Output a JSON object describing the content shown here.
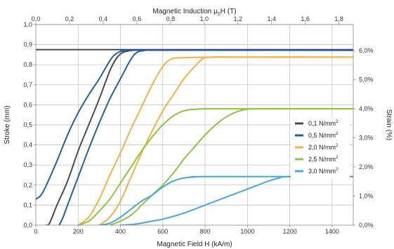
{
  "chart_data": {
    "type": "line",
    "x_axis": {
      "label": "Magnetic Field H (kA/m)",
      "range": [
        0,
        1500
      ],
      "ticks": [
        0,
        200,
        400,
        600,
        800,
        1000,
        1200,
        1400
      ],
      "tick_labels": [
        "0",
        "200",
        "400",
        "600",
        "800",
        "1000",
        "1200",
        "1400"
      ]
    },
    "top_axis": {
      "label_main": "Magnetic Induction  μ",
      "label_sub": "0",
      "label_tail": "H (T)",
      "range": [
        0,
        1.885
      ],
      "ticks": [
        0,
        0.2,
        0.4,
        0.6,
        0.8,
        1.0,
        1.2,
        1.4,
        1.6,
        1.8
      ],
      "tick_labels": [
        "0,0",
        "0,2",
        "0,4",
        "0,6",
        "0,8",
        "1,0",
        "1,2",
        "1,4",
        "1,6",
        "1,8"
      ]
    },
    "y_axis": {
      "label": "Stroke (mm)",
      "range": [
        0,
        1.0
      ],
      "ticks": [
        0,
        0.1,
        0.2,
        0.3,
        0.4,
        0.5,
        0.6,
        0.7,
        0.8,
        0.9,
        1.0
      ],
      "tick_labels": [
        "0,0",
        "0,1",
        "0,2",
        "0,3",
        "0,4",
        "0,5",
        "0,6",
        "0,7",
        "0,8",
        "0,9",
        "1,0"
      ]
    },
    "y2_axis": {
      "label": "Strain (%)",
      "range": [
        0,
        6.896
      ],
      "ticks": [
        0,
        1,
        2,
        3,
        4,
        5,
        6
      ],
      "tick_labels": [
        "0,0%",
        "1,0%",
        "2,0%",
        "3,0%",
        "4,0%",
        "5,0%",
        "6,0%"
      ]
    },
    "grid": true,
    "legend_position": "right-center",
    "series": [
      {
        "name": "0,1 N/mm",
        "sup": "2",
        "color": "#4a4a4a",
        "curves": [
          [
            [
              0,
              0.875
            ],
            [
              1500,
              0.875
            ]
          ],
          [
            [
              50,
              0
            ],
            [
              65,
              0.01
            ],
            [
              100,
              0.1
            ],
            [
              150,
              0.22
            ],
            [
              200,
              0.37
            ],
            [
              250,
              0.5
            ],
            [
              300,
              0.63
            ],
            [
              350,
              0.77
            ],
            [
              380,
              0.83
            ],
            [
              410,
              0.86
            ],
            [
              450,
              0.87
            ],
            [
              520,
              0.872
            ],
            [
              1500,
              0.872
            ]
          ]
        ]
      },
      {
        "name": "0,5 N/mm",
        "sup": "2",
        "color": "#1f5fa8",
        "curves": [
          [
            [
              0,
              0.13
            ],
            [
              25,
              0.15
            ],
            [
              50,
              0.2
            ],
            [
              100,
              0.32
            ],
            [
              150,
              0.45
            ],
            [
              200,
              0.56
            ],
            [
              250,
              0.65
            ],
            [
              300,
              0.73
            ],
            [
              350,
              0.82
            ],
            [
              380,
              0.855
            ],
            [
              420,
              0.87
            ],
            [
              500,
              0.873
            ],
            [
              1500,
              0.872
            ]
          ],
          [
            [
              110,
              0
            ],
            [
              125,
              0.03
            ],
            [
              150,
              0.1
            ],
            [
              200,
              0.24
            ],
            [
              250,
              0.38
            ],
            [
              300,
              0.51
            ],
            [
              350,
              0.63
            ],
            [
              400,
              0.73
            ],
            [
              440,
              0.81
            ],
            [
              470,
              0.855
            ],
            [
              510,
              0.87
            ],
            [
              600,
              0.873
            ],
            [
              1500,
              0.872
            ]
          ]
        ]
      },
      {
        "name": "2,0 N/mm",
        "sup": "2",
        "color": "#f5b041",
        "curves": [
          [
            [
              200,
              0
            ],
            [
              250,
              0.04
            ],
            [
              300,
              0.13
            ],
            [
              350,
              0.25
            ],
            [
              400,
              0.36
            ],
            [
              450,
              0.48
            ],
            [
              500,
              0.59
            ],
            [
              550,
              0.7
            ],
            [
              600,
              0.79
            ],
            [
              640,
              0.828
            ],
            [
              700,
              0.835
            ],
            [
              900,
              0.838
            ],
            [
              1500,
              0.838
            ]
          ],
          [
            [
              300,
              0
            ],
            [
              350,
              0.04
            ],
            [
              400,
              0.12
            ],
            [
              450,
              0.24
            ],
            [
              500,
              0.36
            ],
            [
              550,
              0.47
            ],
            [
              600,
              0.57
            ],
            [
              650,
              0.65
            ],
            [
              700,
              0.73
            ],
            [
              750,
              0.79
            ],
            [
              790,
              0.83
            ],
            [
              830,
              0.838
            ],
            [
              1000,
              0.838
            ],
            [
              1500,
              0.838
            ]
          ]
        ]
      },
      {
        "name": "2,5 N/mm",
        "sup": "2",
        "color": "#8cc63f",
        "curves": [
          [
            [
              200,
              0
            ],
            [
              250,
              0.02
            ],
            [
              300,
              0.07
            ],
            [
              350,
              0.13
            ],
            [
              400,
              0.21
            ],
            [
              450,
              0.29
            ],
            [
              500,
              0.37
            ],
            [
              550,
              0.44
            ],
            [
              600,
              0.5
            ],
            [
              650,
              0.545
            ],
            [
              700,
              0.57
            ],
            [
              760,
              0.578
            ],
            [
              850,
              0.58
            ],
            [
              1500,
              0.58
            ]
          ],
          [
            [
              350,
              0
            ],
            [
              400,
              0.02
            ],
            [
              450,
              0.05
            ],
            [
              500,
              0.1
            ],
            [
              550,
              0.15
            ],
            [
              600,
              0.2
            ],
            [
              650,
              0.26
            ],
            [
              700,
              0.33
            ],
            [
              750,
              0.39
            ],
            [
              800,
              0.45
            ],
            [
              850,
              0.5
            ],
            [
              900,
              0.54
            ],
            [
              950,
              0.565
            ],
            [
              1000,
              0.578
            ],
            [
              1100,
              0.58
            ],
            [
              1500,
              0.58
            ]
          ]
        ]
      },
      {
        "name": "3,0 N/mm",
        "sup": "2",
        "color": "#41a9e0",
        "curves": [
          [
            [
              300,
              0
            ],
            [
              350,
              0.01
            ],
            [
              400,
              0.04
            ],
            [
              450,
              0.08
            ],
            [
              500,
              0.12
            ],
            [
              550,
              0.15
            ],
            [
              600,
              0.19
            ],
            [
              650,
              0.22
            ],
            [
              700,
              0.235
            ],
            [
              750,
              0.24
            ],
            [
              800,
              0.242
            ],
            [
              1500,
              0.242
            ]
          ],
          [
            [
              400,
              0
            ],
            [
              450,
              0.003
            ],
            [
              500,
              0.01
            ],
            [
              550,
              0.02
            ],
            [
              600,
              0.03
            ],
            [
              700,
              0.06
            ],
            [
              800,
              0.1
            ],
            [
              900,
              0.14
            ],
            [
              1000,
              0.18
            ],
            [
              1050,
              0.2
            ],
            [
              1100,
              0.22
            ],
            [
              1150,
              0.235
            ],
            [
              1200,
              0.242
            ],
            [
              1500,
              0.242
            ]
          ]
        ]
      }
    ]
  }
}
